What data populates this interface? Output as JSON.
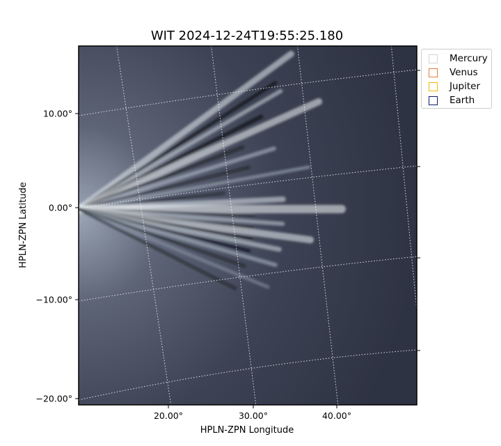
{
  "chart_data": {
    "type": "heatmap",
    "title": "WIT 2024-12-24T19:55:25.180",
    "xlabel": "HPLN-ZPN Longitude",
    "ylabel": "HPLN-ZPN Latitude",
    "x_ticks": [
      "20.00°",
      "30.00°",
      "40.00°"
    ],
    "y_ticks": [
      "10.00°",
      "0.00°",
      "−10.00°",
      "−20.00°"
    ],
    "colormap": "bone",
    "grid": "dotted white coordinate grid",
    "legend_position": "outside top-right",
    "legend": [
      {
        "name": "Mercury",
        "color": "#d3d3d3"
      },
      {
        "name": "Venus",
        "color": "#e07b39"
      },
      {
        "name": "Jupiter",
        "color": "#f2b705"
      },
      {
        "name": "Earth",
        "color": "#0b1a6e"
      }
    ]
  }
}
